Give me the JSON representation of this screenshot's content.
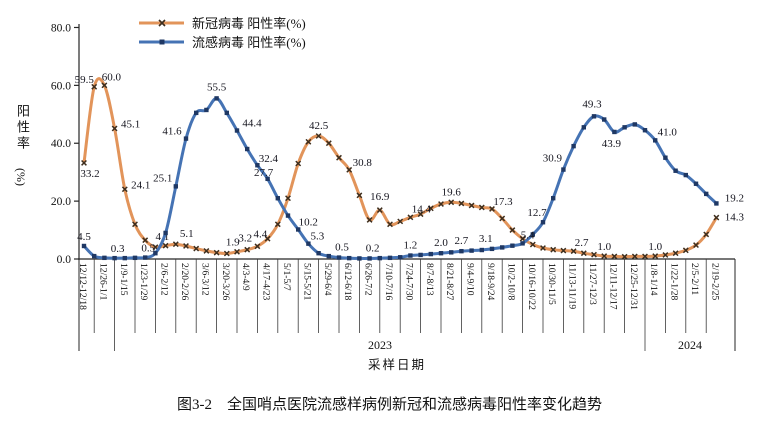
{
  "figure": {
    "caption": "图3-2　全国哨点医院流感样病例新冠和流感病毒阳性率变化趋势"
  },
  "chart_data": {
    "type": "line",
    "title": "",
    "grid": false,
    "legend_position": "top-left-inside",
    "x_axis": {
      "title": "采样日期",
      "year_labels": [
        "2023",
        "2024"
      ],
      "year_separators_after_label": [
        1,
        27
      ],
      "labels": [
        "12/12-12/18",
        "12/26-1/1",
        "1/9-1/15",
        "1/23-1/29",
        "2/6-2/12",
        "2/20-2/26",
        "3/6-3/12",
        "3/20-3/26",
        "4/3-4/9",
        "4/17-4/23",
        "5/1-5/7",
        "5/15-5/21",
        "5/29-6/4",
        "6/12-6/18",
        "6/26-7/2",
        "7/10-7/16",
        "7/24-7/30",
        "8/7-8/13",
        "8/21-8/27",
        "9/4-9/10",
        "9/18-9/24",
        "10/2-10/8",
        "10/16-10/22",
        "10/30-11/5",
        "11/13-11/19",
        "11/27-12/3",
        "12/11-12/17",
        "12/25-12/31",
        "1/8-1/14",
        "1/22-1/28",
        "2/5-2/11",
        "2/19-2/25"
      ]
    },
    "y_axis": {
      "title": "阳性率",
      "unit": "(%)",
      "min": 0,
      "max": 80,
      "step": 20,
      "ticks": [
        "0.0",
        "20.0",
        "40.0",
        "60.0",
        "80.0"
      ]
    },
    "series": [
      {
        "name": "新冠病毒 阳性率(%)",
        "color": "#E2945A",
        "marker": "x",
        "marker_color": "#3D2E1E",
        "values": [
          33.2,
          59.5,
          60.0,
          45.1,
          24.1,
          12.0,
          6.5,
          4.1,
          4.6,
          5.1,
          4.5,
          3.6,
          2.8,
          2.2,
          1.9,
          2.5,
          3.2,
          4.4,
          7.0,
          12.0,
          21.0,
          33.0,
          40.5,
          42.5,
          40.0,
          35.0,
          30.8,
          22.0,
          13.5,
          16.9,
          12.0,
          13.0,
          14.4,
          15.5,
          17.5,
          19.0,
          19.6,
          19.2,
          18.5,
          17.8,
          17.3,
          14.0,
          10.0,
          7.0,
          5.0,
          3.8,
          3.2,
          2.9,
          2.7,
          2.0,
          1.5,
          1.0,
          0.9,
          0.8,
          0.9,
          0.9,
          1.0,
          1.4,
          2.0,
          3.0,
          4.8,
          8.5,
          14.3
        ],
        "labeled_points": [
          {
            "i": 0,
            "v": "33.2",
            "dx": 6,
            "dy": 14
          },
          {
            "i": 1,
            "v": "59.5",
            "dx": -10,
            "dy": -4
          },
          {
            "i": 2,
            "v": "60.0",
            "dx": 7,
            "dy": -5
          },
          {
            "i": 3,
            "v": "45.1",
            "dx": 16,
            "dy": -1
          },
          {
            "i": 4,
            "v": "24.1",
            "dx": 16,
            "dy": -1
          },
          {
            "i": 7,
            "v": "4.1",
            "dx": 7,
            "dy": -7
          },
          {
            "i": 9,
            "v": "5.1",
            "dx": 11,
            "dy": -7
          },
          {
            "i": 14,
            "v": "1.9",
            "dx": 6,
            "dy": -8
          },
          {
            "i": 16,
            "v": "3.2",
            "dx": -2,
            "dy": -8
          },
          {
            "i": 17,
            "v": "4.4",
            "dx": 3,
            "dy": -9
          },
          {
            "i": 23,
            "v": "42.5",
            "dx": 0,
            "dy": -7
          },
          {
            "i": 26,
            "v": "30.8",
            "dx": 13,
            "dy": -4
          },
          {
            "i": 29,
            "v": "16.9",
            "dx": 0,
            "dy": -10
          },
          {
            "i": 32,
            "v": "14.4",
            "dx": 11,
            "dy": -5
          },
          {
            "i": 36,
            "v": "19.6",
            "dx": 0,
            "dy": -7
          },
          {
            "i": 40,
            "v": "17.3",
            "dx": 11,
            "dy": -4
          },
          {
            "i": 48,
            "v": "2.7",
            "dx": 8,
            "dy": -5
          },
          {
            "i": 51,
            "v": "1.0",
            "dx": 0,
            "dy": -6
          },
          {
            "i": 56,
            "v": "1.0",
            "dx": 0,
            "dy": -6
          },
          {
            "i": 62,
            "v": "14.3",
            "dx": 18,
            "dy": 3
          }
        ]
      },
      {
        "name": "流感病毒 阳性率(%)",
        "color": "#4573B4",
        "marker": "square",
        "marker_color": "#1F3864",
        "values": [
          4.5,
          1.0,
          0.4,
          0.3,
          0.3,
          0.4,
          0.5,
          2.0,
          9.0,
          25.1,
          41.6,
          50.5,
          51.5,
          55.5,
          50.5,
          44.4,
          38.0,
          32.4,
          27.7,
          21.0,
          15.0,
          10.2,
          5.3,
          2.0,
          1.0,
          0.5,
          0.3,
          0.2,
          0.2,
          0.3,
          0.4,
          0.6,
          1.2,
          1.4,
          1.7,
          2.0,
          2.3,
          2.7,
          2.9,
          3.1,
          3.5,
          4.0,
          4.6,
          5.4,
          8.5,
          12.7,
          21.0,
          30.9,
          39.0,
          45.5,
          49.3,
          48.2,
          43.9,
          45.5,
          46.5,
          44.5,
          41.0,
          35.0,
          30.5,
          29.0,
          26.0,
          22.5,
          19.2
        ],
        "labeled_points": [
          {
            "i": 0,
            "v": "4.5",
            "dx": 0,
            "dy": -6
          },
          {
            "i": 3,
            "v": "0.3",
            "dx": 3,
            "dy": -6
          },
          {
            "i": 6,
            "v": "0.5",
            "dx": 3,
            "dy": -6
          },
          {
            "i": 9,
            "v": "25.1",
            "dx": -13,
            "dy": -5
          },
          {
            "i": 10,
            "v": "41.6",
            "dx": -14,
            "dy": -4
          },
          {
            "i": 13,
            "v": "55.5",
            "dx": 0,
            "dy": -8
          },
          {
            "i": 15,
            "v": "44.4",
            "dx": 15,
            "dy": -4
          },
          {
            "i": 17,
            "v": "32.4",
            "dx": 11,
            "dy": -3
          },
          {
            "i": 18,
            "v": "27.7",
            "dx": -4,
            "dy": -3
          },
          {
            "i": 21,
            "v": "10.2",
            "dx": 10,
            "dy": -4
          },
          {
            "i": 22,
            "v": "5.3",
            "dx": 9,
            "dy": -4
          },
          {
            "i": 25,
            "v": "0.5",
            "dx": 3,
            "dy": -7
          },
          {
            "i": 28,
            "v": "0.2",
            "dx": 3,
            "dy": -7
          },
          {
            "i": 32,
            "v": "1.2",
            "dx": 0,
            "dy": -7
          },
          {
            "i": 35,
            "v": "2.0",
            "dx": 0,
            "dy": -7
          },
          {
            "i": 37,
            "v": "2.7",
            "dx": 0,
            "dy": -7
          },
          {
            "i": 39,
            "v": "3.1",
            "dx": 4,
            "dy": -8
          },
          {
            "i": 43,
            "v": "5.4",
            "dx": 5,
            "dy": -5
          },
          {
            "i": 45,
            "v": "12.7",
            "dx": -6,
            "dy": -6
          },
          {
            "i": 47,
            "v": "30.9",
            "dx": -11,
            "dy": -8
          },
          {
            "i": 50,
            "v": "49.3",
            "dx": -2,
            "dy": -9
          },
          {
            "i": 52,
            "v": "43.9",
            "dx": -3,
            "dy": 15
          },
          {
            "i": 56,
            "v": "41.0",
            "dx": 12,
            "dy": -5
          },
          {
            "i": 62,
            "v": "19.2",
            "dx": 18,
            "dy": -2
          }
        ]
      }
    ]
  }
}
